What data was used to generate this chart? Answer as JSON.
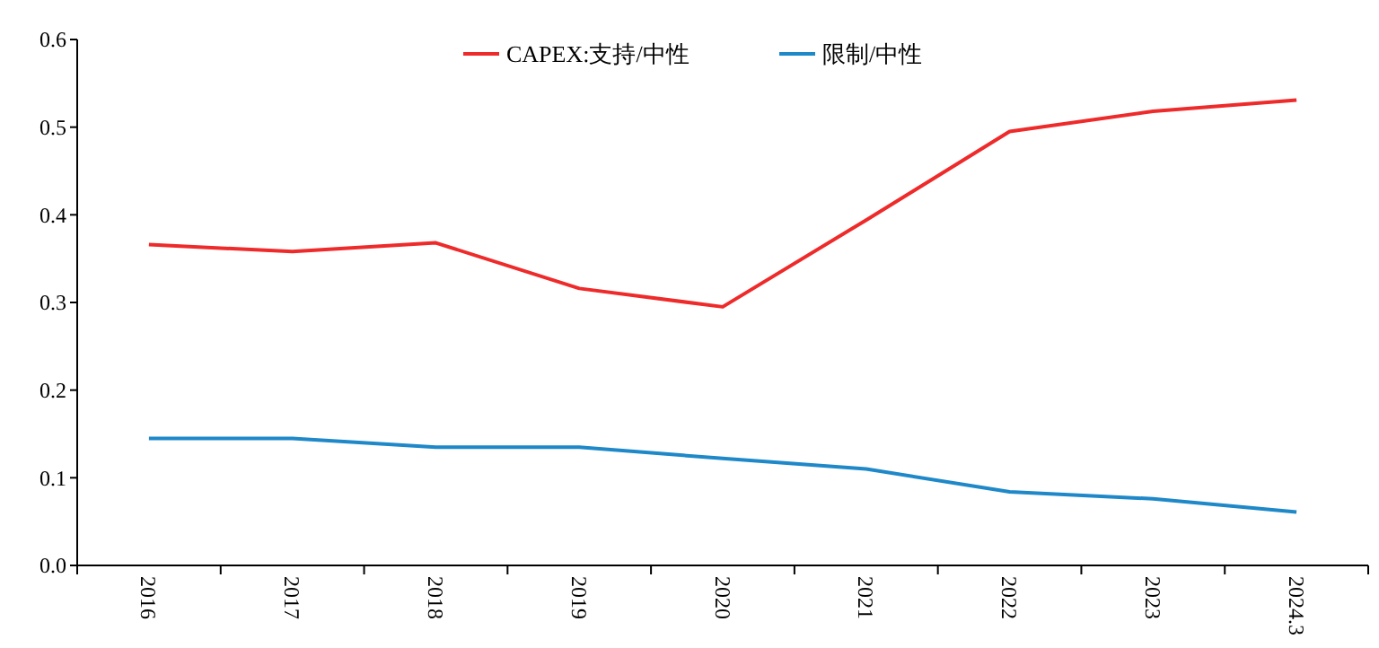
{
  "chart_data": {
    "type": "line",
    "categories": [
      "2016",
      "2017",
      "2018",
      "2019",
      "2020",
      "2021",
      "2022",
      "2023",
      "2024.3"
    ],
    "series": [
      {
        "name": "CAPEX:支持/中性",
        "color": "#ee2a2a",
        "values": [
          0.366,
          0.358,
          0.368,
          0.316,
          0.295,
          0.394,
          0.495,
          0.518,
          0.531
        ]
      },
      {
        "name": "限制/中性",
        "color": "#1e88c8",
        "values": [
          0.145,
          0.145,
          0.135,
          0.135,
          0.122,
          0.11,
          0.084,
          0.076,
          0.061
        ]
      }
    ],
    "ylim": [
      0,
      0.6
    ],
    "yticks": [
      {
        "value": 0,
        "label": "0.0"
      },
      {
        "value": 0.1,
        "label": "0.1"
      },
      {
        "value": 0.2,
        "label": "0.2"
      },
      {
        "value": 0.3,
        "label": "0.3"
      },
      {
        "value": 0.4,
        "label": "0.4"
      },
      {
        "value": 0.5,
        "label": "0.5"
      },
      {
        "value": 0.6,
        "label": "0.6"
      }
    ],
    "grid": false,
    "legend": "top",
    "marker": "none",
    "line_style": "solid"
  }
}
